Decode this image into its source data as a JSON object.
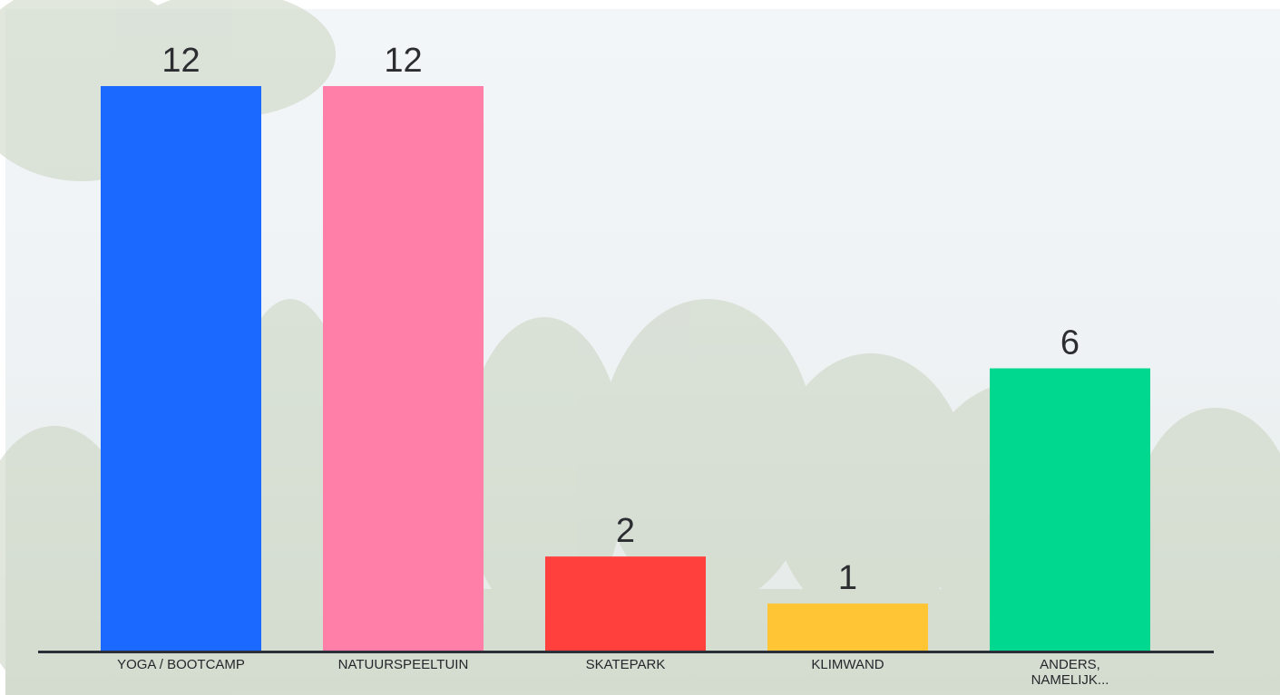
{
  "chart_data": {
    "type": "bar",
    "categories": [
      "YOGA / BOOTCAMP",
      "NATUURSPEELTUIN",
      "SKATEPARK",
      "KLIMWAND",
      "ANDERS,\nNAMELIJK..."
    ],
    "values": [
      12,
      12,
      2,
      1,
      6
    ],
    "colors": [
      "#1c69ff",
      "#ff7fa8",
      "#ff403d",
      "#ffc535",
      "#00d78f"
    ],
    "ylim": [
      0,
      12
    ]
  }
}
